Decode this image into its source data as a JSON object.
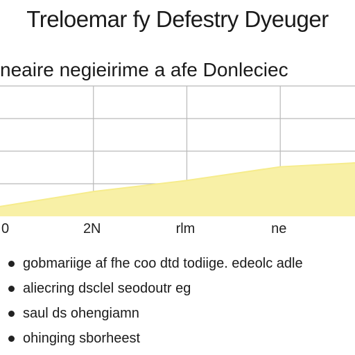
{
  "title": "Treloemar fy Defestry Dyeuger",
  "subtitle": "neaire negieirime a afe Donleciec",
  "chart_data": {
    "type": "area",
    "x_ticks": [
      "0",
      "2N",
      "rlm",
      "ne"
    ],
    "x": [
      0,
      1,
      2,
      3,
      3.8
    ],
    "values": [
      0.15,
      0.38,
      0.55,
      0.76,
      0.82
    ],
    "ylim": [
      0,
      2.0
    ],
    "xlim": [
      0,
      3.8
    ],
    "grid": true,
    "fill_color": "#f8f0a6",
    "line_color": "#f6ec8c",
    "grid_color": "#b9b9b9"
  },
  "bullets": [
    "gobmariige af fhe coo dtd todiige. edeolc adle",
    "aliecring dsclel seodoutr eg",
    "saul ds ohengiamn",
    "ohinging sborheest"
  ]
}
